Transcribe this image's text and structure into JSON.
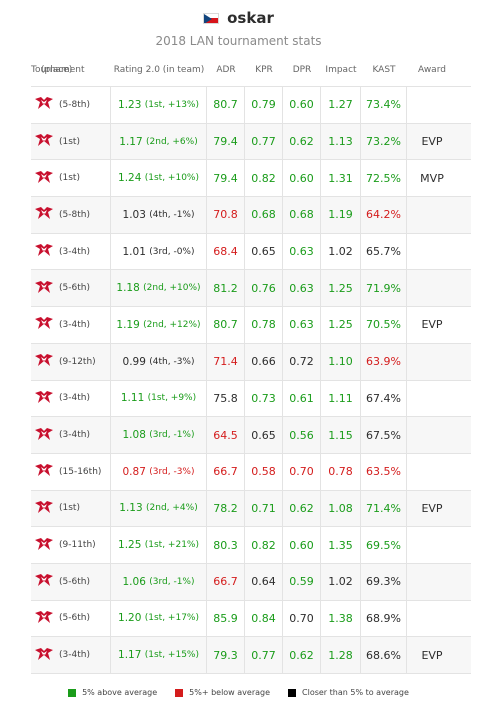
{
  "player": {
    "name": "oskar",
    "flag": "czech-flag"
  },
  "subtitle": "2018 LAN tournament stats",
  "colors": {
    "above": "#1a9c1a",
    "below": "#d41c1c",
    "neutral": "#000000"
  },
  "headers": {
    "tournament": "Tournament",
    "place": "(place)",
    "rating": "Rating 2.0 (in team)",
    "adr": "ADR",
    "kpr": "KPR",
    "dpr": "DPR",
    "impact": "Impact",
    "kast": "KAST",
    "award": "Award"
  },
  "rows": [
    {
      "place": "(5-8th)",
      "rating": "1.23",
      "rating_paren": "(1st, +13%)",
      "rating_c": "g",
      "adr": "80.7",
      "adr_c": "g",
      "kpr": "0.79",
      "kpr_c": "g",
      "dpr": "0.60",
      "dpr_c": "g",
      "impact": "1.27",
      "impact_c": "g",
      "kast": "73.4%",
      "kast_c": "g",
      "award": ""
    },
    {
      "place": "(1st)",
      "rating": "1.17",
      "rating_paren": "(2nd, +6%)",
      "rating_c": "g",
      "adr": "79.4",
      "adr_c": "g",
      "kpr": "0.77",
      "kpr_c": "g",
      "dpr": "0.62",
      "dpr_c": "g",
      "impact": "1.13",
      "impact_c": "g",
      "kast": "73.2%",
      "kast_c": "g",
      "award": "EVP"
    },
    {
      "place": "(1st)",
      "rating": "1.24",
      "rating_paren": "(1st, +10%)",
      "rating_c": "g",
      "adr": "79.4",
      "adr_c": "g",
      "kpr": "0.82",
      "kpr_c": "g",
      "dpr": "0.60",
      "dpr_c": "g",
      "impact": "1.31",
      "impact_c": "g",
      "kast": "72.5%",
      "kast_c": "g",
      "award": "MVP"
    },
    {
      "place": "(5-8th)",
      "rating": "1.03",
      "rating_paren": "(4th, -1%)",
      "rating_c": "n",
      "adr": "70.8",
      "adr_c": "r",
      "kpr": "0.68",
      "kpr_c": "g",
      "dpr": "0.68",
      "dpr_c": "g",
      "impact": "1.19",
      "impact_c": "g",
      "kast": "64.2%",
      "kast_c": "r",
      "award": ""
    },
    {
      "place": "(3-4th)",
      "rating": "1.01",
      "rating_paren": "(3rd, -0%)",
      "rating_c": "n",
      "adr": "68.4",
      "adr_c": "r",
      "kpr": "0.65",
      "kpr_c": "n",
      "dpr": "0.63",
      "dpr_c": "g",
      "impact": "1.02",
      "impact_c": "n",
      "kast": "65.7%",
      "kast_c": "n",
      "award": ""
    },
    {
      "place": "(5-6th)",
      "rating": "1.18",
      "rating_paren": "(2nd, +10%)",
      "rating_c": "g",
      "adr": "81.2",
      "adr_c": "g",
      "kpr": "0.76",
      "kpr_c": "g",
      "dpr": "0.63",
      "dpr_c": "g",
      "impact": "1.25",
      "impact_c": "g",
      "kast": "71.9%",
      "kast_c": "g",
      "award": ""
    },
    {
      "place": "(3-4th)",
      "rating": "1.19",
      "rating_paren": "(2nd, +12%)",
      "rating_c": "g",
      "adr": "80.7",
      "adr_c": "g",
      "kpr": "0.78",
      "kpr_c": "g",
      "dpr": "0.63",
      "dpr_c": "g",
      "impact": "1.25",
      "impact_c": "g",
      "kast": "70.5%",
      "kast_c": "g",
      "award": "EVP"
    },
    {
      "place": "(9-12th)",
      "rating": "0.99",
      "rating_paren": "(4th, -3%)",
      "rating_c": "n",
      "adr": "71.4",
      "adr_c": "r",
      "kpr": "0.66",
      "kpr_c": "n",
      "dpr": "0.72",
      "dpr_c": "n",
      "impact": "1.10",
      "impact_c": "g",
      "kast": "63.9%",
      "kast_c": "r",
      "award": ""
    },
    {
      "place": "(3-4th)",
      "rating": "1.11",
      "rating_paren": "(1st, +9%)",
      "rating_c": "g",
      "adr": "75.8",
      "adr_c": "n",
      "kpr": "0.73",
      "kpr_c": "g",
      "dpr": "0.61",
      "dpr_c": "g",
      "impact": "1.11",
      "impact_c": "g",
      "kast": "67.4%",
      "kast_c": "n",
      "award": ""
    },
    {
      "place": "(3-4th)",
      "rating": "1.08",
      "rating_paren": "(3rd, -1%)",
      "rating_c": "g",
      "adr": "64.5",
      "adr_c": "r",
      "kpr": "0.65",
      "kpr_c": "n",
      "dpr": "0.56",
      "dpr_c": "g",
      "impact": "1.15",
      "impact_c": "g",
      "kast": "67.5%",
      "kast_c": "n",
      "award": ""
    },
    {
      "place": "(15-16th)",
      "rating": "0.87",
      "rating_paren": "(3rd, -3%)",
      "rating_c": "r",
      "adr": "66.7",
      "adr_c": "r",
      "kpr": "0.58",
      "kpr_c": "r",
      "dpr": "0.70",
      "dpr_c": "r",
      "impact": "0.78",
      "impact_c": "r",
      "kast": "63.5%",
      "kast_c": "r",
      "award": ""
    },
    {
      "place": "(1st)",
      "rating": "1.13",
      "rating_paren": "(2nd, +4%)",
      "rating_c": "g",
      "adr": "78.2",
      "adr_c": "g",
      "kpr": "0.71",
      "kpr_c": "g",
      "dpr": "0.62",
      "dpr_c": "g",
      "impact": "1.08",
      "impact_c": "g",
      "kast": "71.4%",
      "kast_c": "g",
      "award": "EVP"
    },
    {
      "place": "(9-11th)",
      "rating": "1.25",
      "rating_paren": "(1st, +21%)",
      "rating_c": "g",
      "adr": "80.3",
      "adr_c": "g",
      "kpr": "0.82",
      "kpr_c": "g",
      "dpr": "0.60",
      "dpr_c": "g",
      "impact": "1.35",
      "impact_c": "g",
      "kast": "69.5%",
      "kast_c": "g",
      "award": ""
    },
    {
      "place": "(5-6th)",
      "rating": "1.06",
      "rating_paren": "(3rd, -1%)",
      "rating_c": "g",
      "adr": "66.7",
      "adr_c": "r",
      "kpr": "0.64",
      "kpr_c": "n",
      "dpr": "0.59",
      "dpr_c": "g",
      "impact": "1.02",
      "impact_c": "n",
      "kast": "69.3%",
      "kast_c": "n",
      "award": ""
    },
    {
      "place": "(5-6th)",
      "rating": "1.20",
      "rating_paren": "(1st, +17%)",
      "rating_c": "g",
      "adr": "85.9",
      "adr_c": "g",
      "kpr": "0.84",
      "kpr_c": "g",
      "dpr": "0.70",
      "dpr_c": "n",
      "impact": "1.38",
      "impact_c": "g",
      "kast": "68.9%",
      "kast_c": "n",
      "award": ""
    },
    {
      "place": "(3-4th)",
      "rating": "1.17",
      "rating_paren": "(1st, +15%)",
      "rating_c": "g",
      "adr": "79.3",
      "adr_c": "g",
      "kpr": "0.77",
      "kpr_c": "g",
      "dpr": "0.62",
      "dpr_c": "g",
      "impact": "1.28",
      "impact_c": "g",
      "kast": "68.6%",
      "kast_c": "n",
      "award": "EVP"
    }
  ],
  "legend": [
    {
      "label": "5% above average",
      "color": "#1a9c1a"
    },
    {
      "label": "5%+ below average",
      "color": "#d41c1c"
    },
    {
      "label": "Closer than 5% to average",
      "color": "#000000"
    }
  ]
}
